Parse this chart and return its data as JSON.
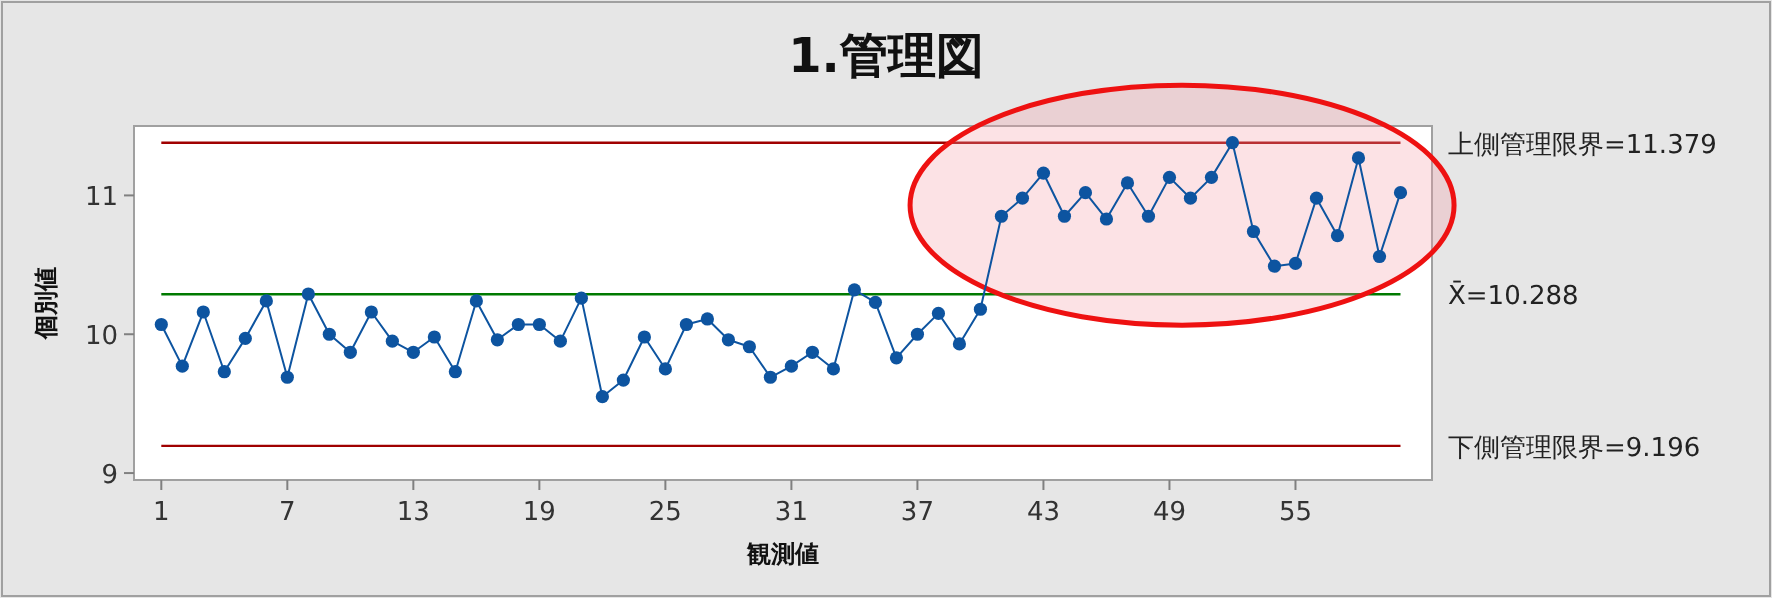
{
  "chart_data": {
    "type": "line",
    "title": "1.管理図",
    "xlabel": "観測値",
    "ylabel": "個別値",
    "x": [
      1,
      2,
      3,
      4,
      5,
      6,
      7,
      8,
      9,
      10,
      11,
      12,
      13,
      14,
      15,
      16,
      17,
      18,
      19,
      20,
      21,
      22,
      23,
      24,
      25,
      26,
      27,
      28,
      29,
      30,
      31,
      32,
      33,
      34,
      35,
      36,
      37,
      38,
      39,
      40,
      41,
      42,
      43,
      44,
      45,
      46,
      47,
      48,
      49,
      50,
      51,
      52,
      53,
      54,
      55,
      56,
      57,
      58,
      59,
      60
    ],
    "series": [
      {
        "color": "#0d54a0",
        "values": [
          10.07,
          9.77,
          10.16,
          9.73,
          9.97,
          10.24,
          9.69,
          10.29,
          10.0,
          9.87,
          10.16,
          9.95,
          9.87,
          9.98,
          9.73,
          10.24,
          9.96,
          10.07,
          10.07,
          9.95,
          10.26,
          9.55,
          9.67,
          9.98,
          9.75,
          10.07,
          10.11,
          9.96,
          9.91,
          9.69,
          9.77,
          9.87,
          9.75,
          10.32,
          10.23,
          9.83,
          10.0,
          10.15,
          9.93,
          10.18,
          10.85,
          10.98,
          11.16,
          10.85,
          11.02,
          10.83,
          11.09,
          10.85,
          11.13,
          10.98,
          11.13,
          11.38,
          10.74,
          10.49,
          10.51,
          10.98,
          10.71,
          11.27,
          10.56,
          11.02
        ]
      }
    ],
    "xlim": [
      -0.3,
      61.5
    ],
    "ylim": [
      8.95,
      11.5
    ],
    "xticks": [
      1,
      7,
      13,
      19,
      25,
      31,
      37,
      43,
      49,
      55
    ],
    "yticks": [
      9,
      10,
      11
    ],
    "ref_lines": [
      {
        "axis": "y",
        "value": 11.379,
        "label": "上側管理限界=11.379",
        "color": "#a00000"
      },
      {
        "axis": "y",
        "value": 10.288,
        "label": "X̄=10.288",
        "color": "#007a00"
      },
      {
        "axis": "y",
        "value": 9.196,
        "label": "下側管理限界=9.196",
        "color": "#a00000"
      }
    ],
    "marker": "circle",
    "line_style": "solid",
    "grid": false
  }
}
